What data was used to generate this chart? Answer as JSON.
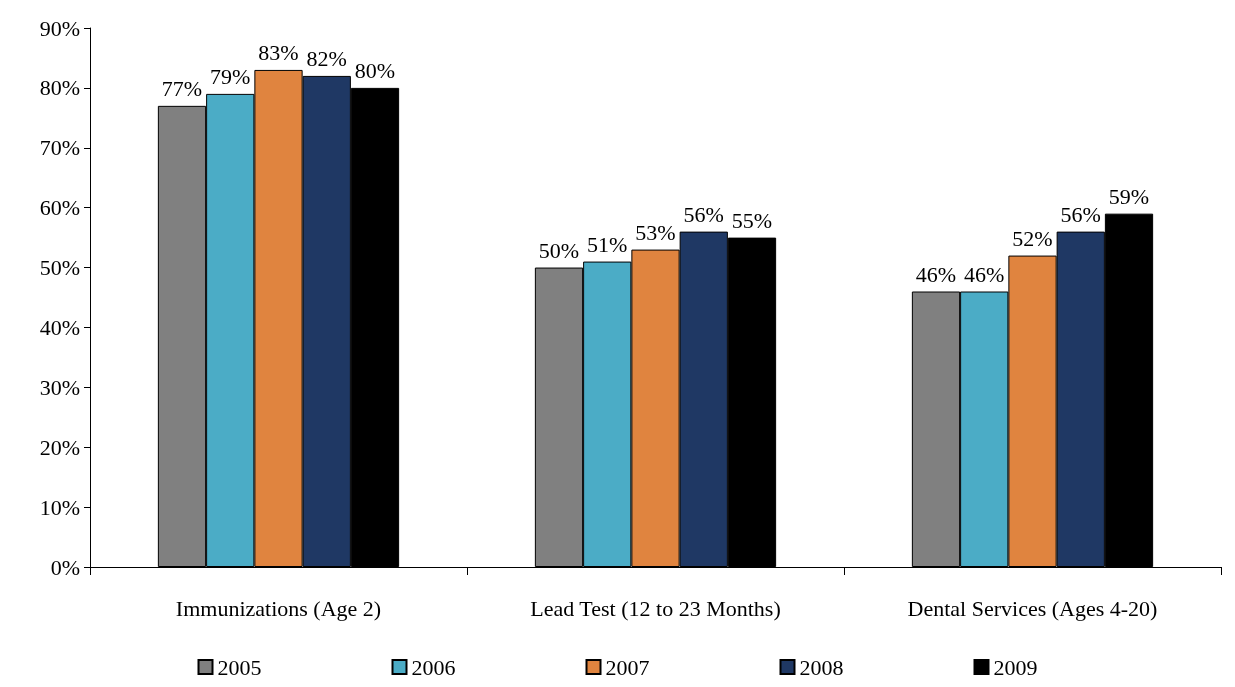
{
  "chart_data": {
    "type": "bar",
    "categories": [
      "Immunizations (Age 2)",
      "Lead Test (12 to 23 Months)",
      "Dental Services (Ages 4-20)"
    ],
    "series": [
      {
        "name": "2005",
        "color": "#808080",
        "values": [
          77,
          50,
          46
        ],
        "value_labels": [
          "77%",
          "50%",
          "46%"
        ]
      },
      {
        "name": "2006",
        "color": "#4bacc6",
        "values": [
          79,
          51,
          46
        ],
        "value_labels": [
          "79%",
          "51%",
          "46%"
        ]
      },
      {
        "name": "2007",
        "color": "#e0843f",
        "values": [
          83,
          53,
          52
        ],
        "value_labels": [
          "83%",
          "53%",
          "52%"
        ]
      },
      {
        "name": "2008",
        "color": "#1f3864",
        "values": [
          82,
          56,
          56
        ],
        "value_labels": [
          "82%",
          "56%",
          "56%"
        ]
      },
      {
        "name": "2009",
        "color": "#000000",
        "values": [
          80,
          55,
          59
        ],
        "value_labels": [
          "80%",
          "55%",
          "59%"
        ]
      }
    ],
    "ylim": [
      0,
      90
    ],
    "yticks": [
      {
        "value": 0,
        "label": "0%"
      },
      {
        "value": 10,
        "label": "10%"
      },
      {
        "value": 20,
        "label": "20%"
      },
      {
        "value": 30,
        "label": "30%"
      },
      {
        "value": 40,
        "label": "40%"
      },
      {
        "value": 50,
        "label": "50%"
      },
      {
        "value": 60,
        "label": "60%"
      },
      {
        "value": 70,
        "label": "70%"
      },
      {
        "value": 80,
        "label": "80%"
      },
      {
        "value": 90,
        "label": "90%"
      }
    ],
    "grid": false,
    "legend": "bottom"
  }
}
